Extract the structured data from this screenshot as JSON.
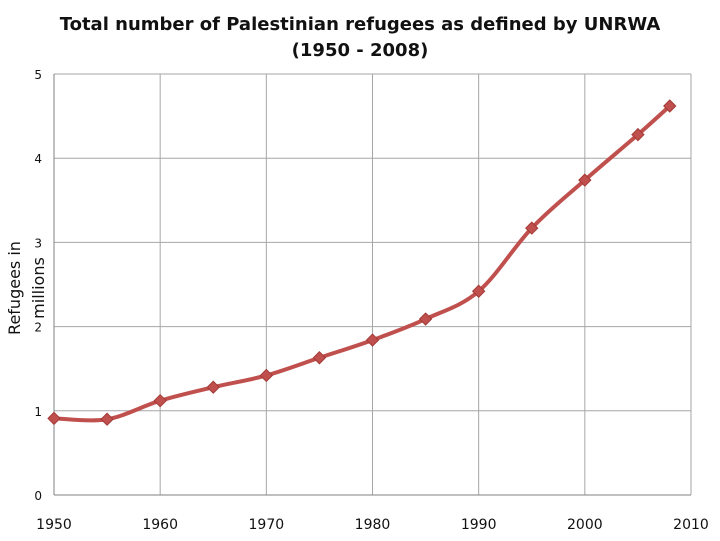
{
  "chart_data": {
    "type": "line",
    "title_line1": "Total number of Palestinian refugees as defined by UNRWA",
    "title_line2": "(1950 - 2008)",
    "xlabel": "",
    "ylabel": "Refugees in millions",
    "xlim": [
      1950,
      2010
    ],
    "ylim": [
      0,
      5
    ],
    "x_ticks": [
      1950,
      1960,
      1970,
      1980,
      1990,
      2000,
      2010
    ],
    "y_ticks": [
      0,
      1,
      2,
      3,
      4,
      5
    ],
    "grid": true,
    "legend": "none",
    "series": [
      {
        "color": "#c0504d",
        "marker": "diamond",
        "x": [
          1950,
          1955,
          1960,
          1965,
          1970,
          1975,
          1980,
          1985,
          1990,
          1995,
          2000,
          2005,
          2008
        ],
        "y": [
          0.91,
          0.9,
          1.12,
          1.28,
          1.42,
          1.63,
          1.84,
          2.09,
          2.42,
          3.17,
          3.74,
          4.28,
          4.62
        ]
      }
    ]
  }
}
